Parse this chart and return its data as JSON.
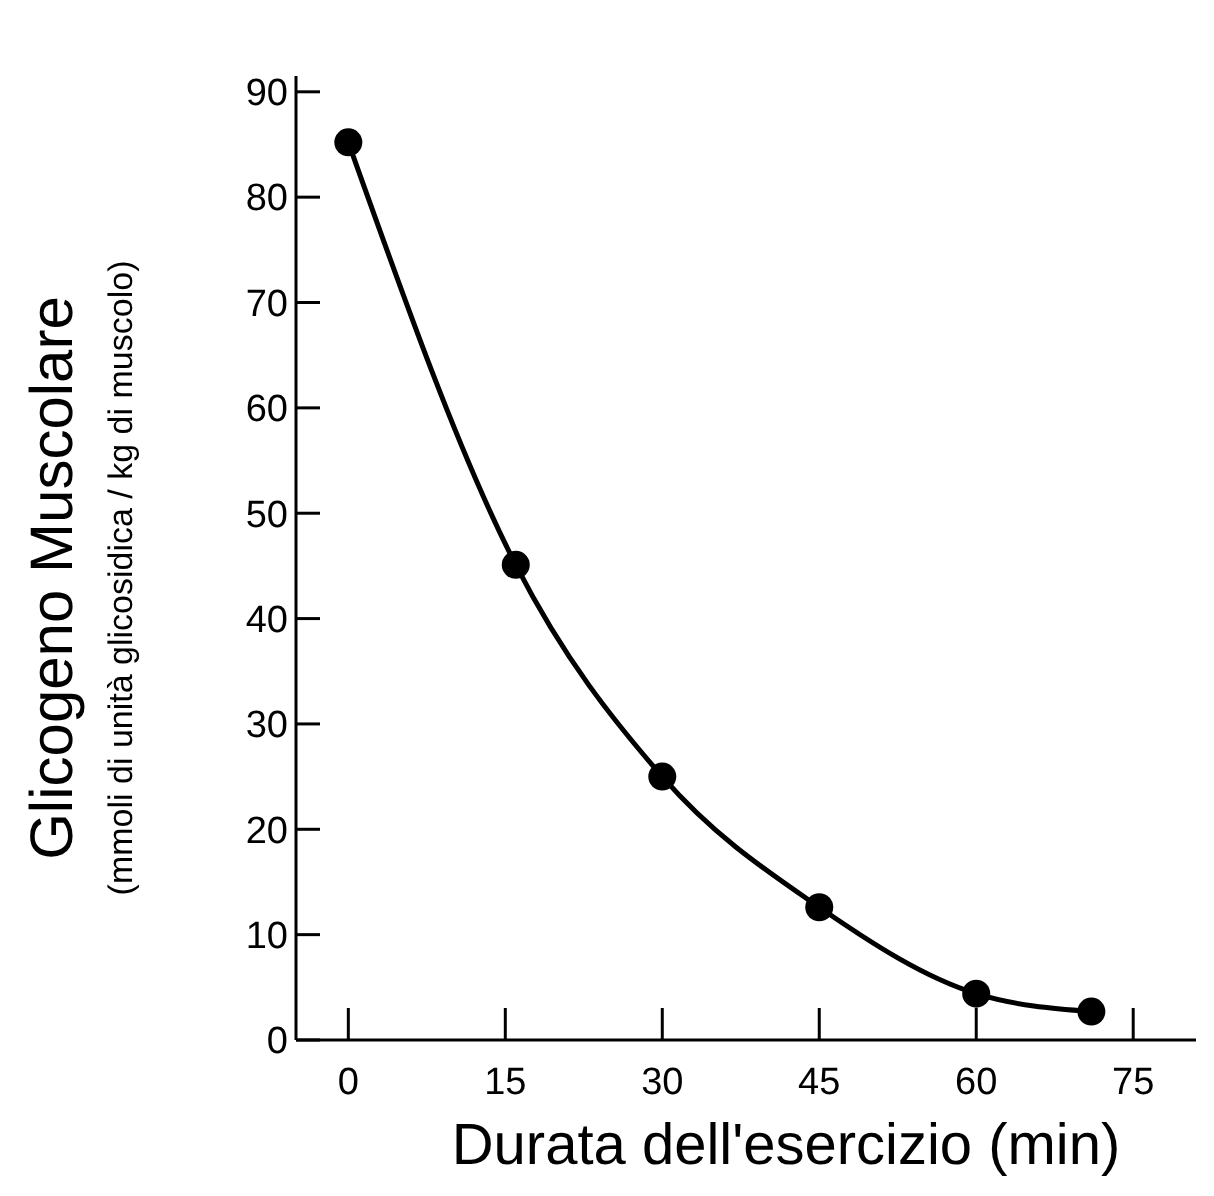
{
  "chart_data": {
    "type": "line",
    "xlabel": "Durata dell'esercizio (min)",
    "ylabel": "Glicogeno Muscolare\n(mmoli di unità glicosidica / kg di muscolo)",
    "x": [
      0,
      16,
      30,
      45,
      60,
      71
    ],
    "series": [
      {
        "color": "#000000",
        "values": [
          85.2,
          45.1,
          25.0,
          12.6,
          4.4,
          2.7
        ]
      }
    ],
    "xlim": [
      -5,
      81
    ],
    "ylim": [
      0,
      91.5
    ],
    "xticks": [
      0,
      15,
      30,
      45,
      60,
      75
    ],
    "yticks": [
      0,
      10,
      20,
      30,
      40,
      50,
      60,
      70,
      80,
      90
    ],
    "grid": false,
    "marker": "circle",
    "line_style": "solid"
  }
}
